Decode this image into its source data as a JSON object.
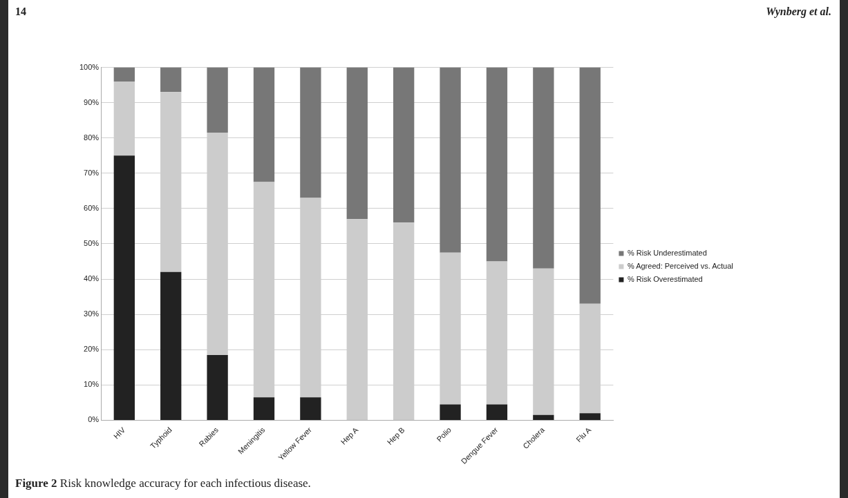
{
  "chart_data": {
    "type": "bar",
    "stacked": true,
    "categories": [
      "HIV",
      "Typhoid",
      "Rabies",
      "Meningitis",
      "Yellow Fever",
      "Hep A",
      "Hep B",
      "Polio",
      "Dengue Fever",
      "Cholera",
      "Flu A"
    ],
    "series": [
      {
        "name": "% Risk Overestimated",
        "color": "#222222",
        "values": [
          75,
          42,
          18.5,
          6.5,
          6.5,
          0,
          0,
          4.5,
          4.5,
          1.5,
          2
        ]
      },
      {
        "name": "% Agreed: Perceived vs. Actual",
        "color": "#cccccc",
        "values": [
          21,
          51,
          63,
          61,
          56.5,
          57,
          56,
          43,
          40.5,
          41.5,
          31
        ]
      },
      {
        "name": "% Risk Underestimated",
        "color": "#777777",
        "values": [
          4,
          7,
          18.5,
          32.5,
          37,
          43,
          44,
          52.5,
          55,
          57,
          67
        ]
      }
    ],
    "ylim": [
      0,
      100
    ],
    "yticks": [
      {
        "value": 0,
        "label": "0%"
      },
      {
        "value": 10,
        "label": "10%"
      },
      {
        "value": 20,
        "label": "20%"
      },
      {
        "value": 30,
        "label": "30%"
      },
      {
        "value": 40,
        "label": "40%"
      },
      {
        "value": 50,
        "label": "50%"
      },
      {
        "value": 60,
        "label": "60%"
      },
      {
        "value": 70,
        "label": "70%"
      },
      {
        "value": 80,
        "label": "80%"
      },
      {
        "value": 90,
        "label": "90%"
      },
      {
        "value": 100,
        "label": "100%"
      }
    ],
    "grid": "y",
    "legend": "right",
    "annotations": [
      "14",
      "Wynberg et al.",
      "Figure 2 Risk knowledge accuracy for each infectious disease."
    ]
  }
}
